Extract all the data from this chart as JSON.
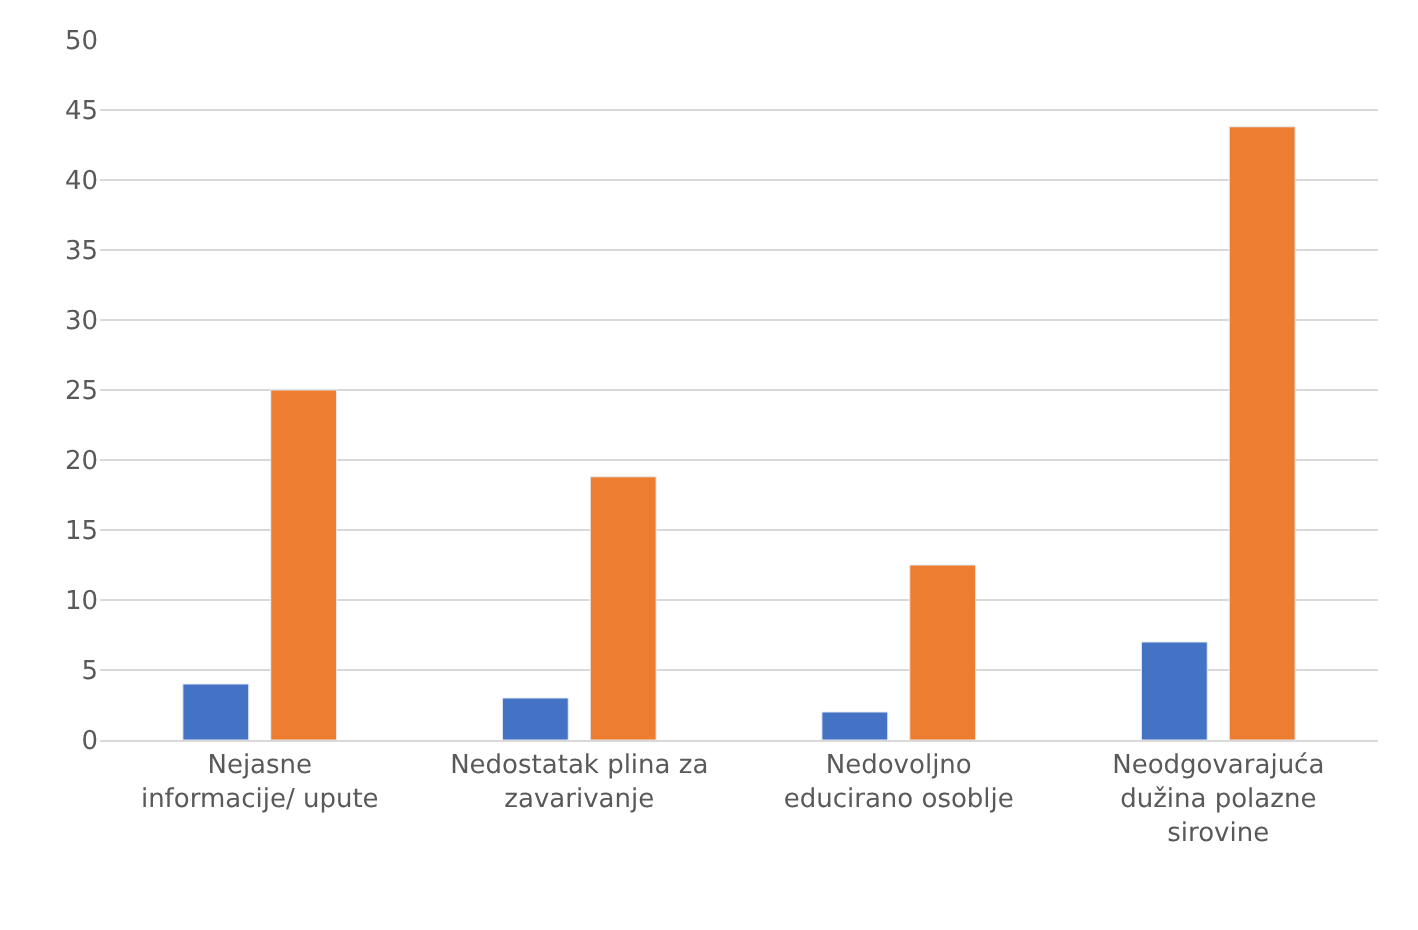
{
  "chart_data": {
    "type": "bar",
    "categories": [
      "Nejasne\ninformacije/ upute",
      "Nedostatak plina za\nzavarivanje",
      "Nedovoljno\neducirano osoblje",
      "Neodgovarajuća\ndužina polazne\nsirovine"
    ],
    "series": [
      {
        "color": "#4472c4",
        "values": [
          4,
          3,
          2,
          7
        ]
      },
      {
        "color": "#ed7d31",
        "values": [
          25,
          18.8,
          12.5,
          43.8
        ]
      }
    ],
    "ylim": [
      0,
      50
    ],
    "yticks": [
      0,
      5,
      10,
      15,
      20,
      25,
      30,
      35,
      40,
      45,
      50
    ],
    "grid": "y"
  }
}
